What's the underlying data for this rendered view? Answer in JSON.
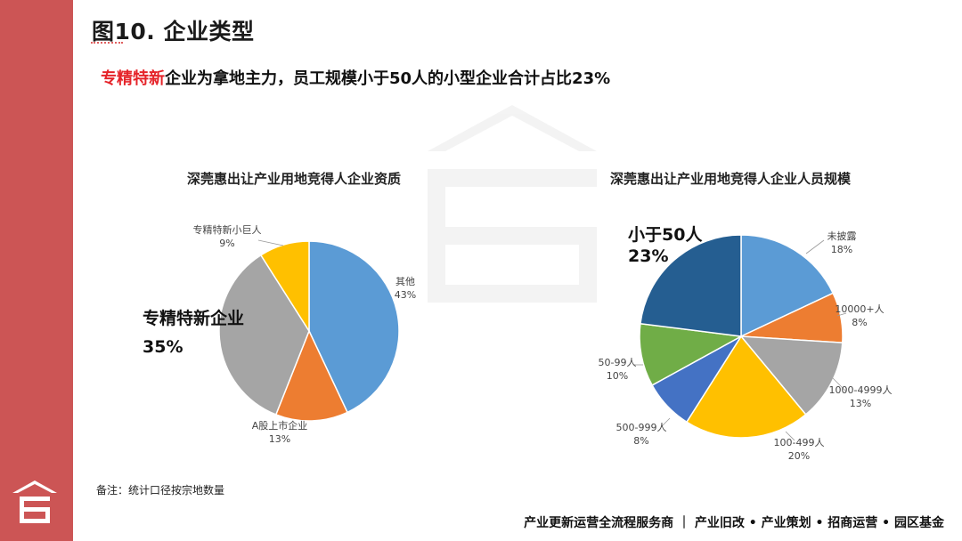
{
  "header": {
    "title": "图10. 企业类型",
    "headline_highlight": "专精特新",
    "headline_rest": "企业为拿地主力，员工规模小于50人的小型企业合计占比23%"
  },
  "colors": {
    "sidebar": "#cc5555",
    "highlight": "#e5242a",
    "blue_light": "#5b9bd5",
    "orange": "#ed7d31",
    "gray": "#a5a5a5",
    "gold": "#ffc000",
    "blue_dark": "#255e91",
    "green": "#70ad47",
    "blue_mid": "#4472c4"
  },
  "chart_data": [
    {
      "type": "pie",
      "title": "深莞惠出让产业用地竞得人企业资质",
      "slices": [
        {
          "label": "其他",
          "value": 43,
          "display": "43%",
          "color": "#5b9bd5"
        },
        {
          "label": "A股上市企业",
          "value": 13,
          "display": "13%",
          "color": "#ed7d31"
        },
        {
          "label": "",
          "value": 35,
          "display": "",
          "color": "#a5a5a5"
        },
        {
          "label": "专精特新小巨人",
          "value": 9,
          "display": "9%",
          "color": "#ffc000"
        }
      ],
      "callout": {
        "label": "专精特新企业",
        "value": "35%"
      }
    },
    {
      "type": "pie",
      "title": "深莞惠出让产业用地竞得人企业人员规模",
      "slices": [
        {
          "label": "未披露",
          "value": 18,
          "display": "18%",
          "color": "#5b9bd5"
        },
        {
          "label": "10000+人",
          "value": 8,
          "display": "8%",
          "color": "#ed7d31"
        },
        {
          "label": "1000-4999人",
          "value": 13,
          "display": "13%",
          "color": "#a5a5a5"
        },
        {
          "label": "100-499人",
          "value": 20,
          "display": "20%",
          "color": "#ffc000"
        },
        {
          "label": "500-999人",
          "value": 8,
          "display": "8%",
          "color": "#4472c4"
        },
        {
          "label": "50-99人",
          "value": 10,
          "display": "10%",
          "color": "#70ad47"
        },
        {
          "label": "",
          "value": 23,
          "display": "",
          "color": "#255e91"
        }
      ],
      "callout": {
        "label": "小于50人",
        "value": "23%"
      }
    }
  ],
  "note": "备注：统计口径按宗地数量",
  "footer": "产业更新运营全流程服务商 ｜ 产业旧改 • 产业策划 • 招商运营 • 园区基金"
}
